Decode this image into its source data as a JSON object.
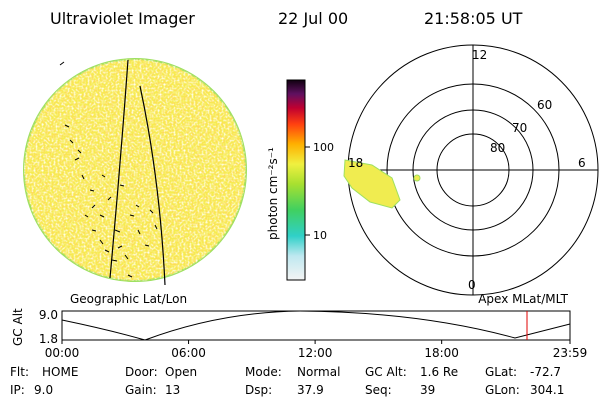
{
  "header": {
    "title": "Ultraviolet Imager",
    "date": "22 Jul 00",
    "time": "21:58:05 UT"
  },
  "colorbar": {
    "label": "photon cm⁻²s⁻¹",
    "ticks": [
      "100",
      "10"
    ]
  },
  "left_panel": {
    "caption": "Geographic Lat/Lon"
  },
  "right_panel": {
    "caption": "Apex MLat/MLT",
    "mlt_labels": [
      "12",
      "6",
      "18",
      "0"
    ],
    "mlat_labels": [
      "60",
      "70",
      "80"
    ]
  },
  "altitude_plot": {
    "ylabel": "GC Alt",
    "yticks": [
      "9.0",
      "1.8"
    ],
    "xticks": [
      "00:00",
      "06:00",
      "12:00",
      "18:00",
      "23:59"
    ]
  },
  "footer": {
    "rows": [
      [
        [
          "Flt:",
          "HOME"
        ],
        [
          "Door:",
          "Open"
        ],
        [
          "Mode:",
          "Normal"
        ],
        [
          "GC Alt:",
          "1.6 Re"
        ],
        [
          "GLat:",
          "-72.7"
        ]
      ],
      [
        [
          "IP:",
          "9.0"
        ],
        [
          "Gain:",
          "13"
        ],
        [
          "Dsp:",
          "37.9"
        ],
        [
          "Seq:",
          "39"
        ],
        [
          "GLon:",
          "304.1"
        ]
      ]
    ]
  }
}
